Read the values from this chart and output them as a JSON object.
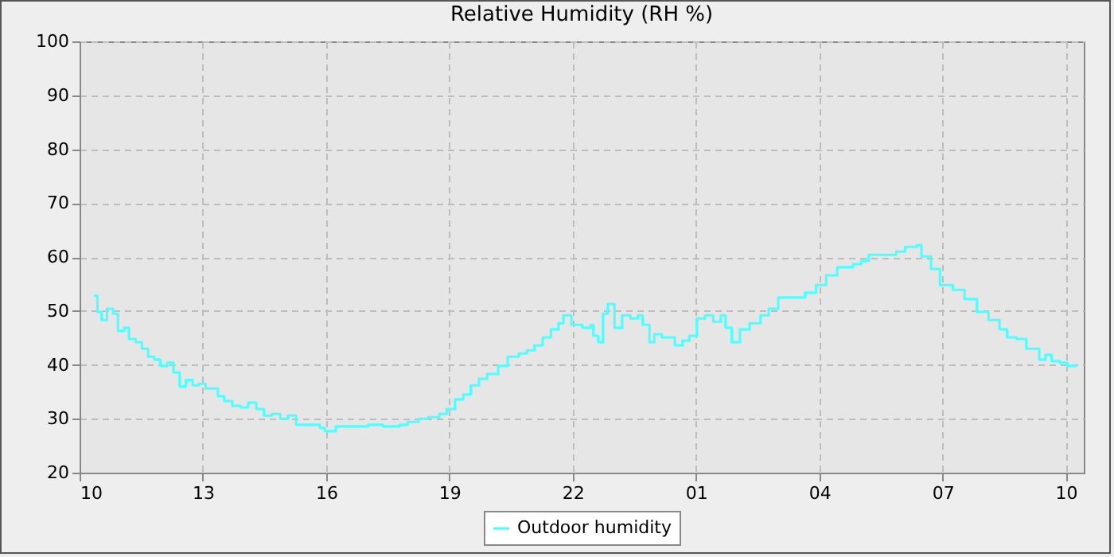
{
  "chart_data": {
    "type": "step",
    "title": "Relative Humidity (RH %)",
    "x": [
      "--01-01T10:21",
      "--01-01T10:26",
      "--01-01T10:32",
      "--01-01T10:40",
      "--01-01T10:49",
      "--01-01T10:56",
      "--01-01T11:05",
      "--01-01T11:12",
      "--01-01T11:22",
      "--01-01T11:31",
      "--01-01T11:40",
      "--01-01T11:49",
      "--01-01T11:58",
      "--01-01T12:08",
      "--01-01T12:17",
      "--01-01T12:26",
      "--01-01T12:35",
      "--01-01T12:45",
      "--01-01T12:54",
      "--01-01T13:04",
      "--01-01T13:13",
      "--01-01T13:22",
      "--01-01T13:31",
      "--01-01T13:43",
      "--01-01T13:55",
      "--01-01T14:06",
      "--01-01T14:18",
      "--01-01T14:29",
      "--01-01T14:41",
      "--01-01T14:53",
      "--01-01T15:04",
      "--01-01T15:16",
      "--01-01T15:28",
      "--01-01T15:39",
      "--01-01T15:51",
      "--01-01T15:58",
      "--01-01T16:14",
      "--01-01T16:37",
      "--01-01T17:01",
      "--01-01T17:23",
      "--01-01T17:47",
      "--01-01T17:59",
      "--01-01T18:15",
      "--01-01T18:29",
      "--01-01T18:45",
      "--01-01T18:56",
      "--01-01T19:08",
      "--01-01T19:20",
      "--01-01T19:31",
      "--01-01T19:43",
      "--01-01T19:55",
      "--01-01T20:11",
      "--01-01T20:25",
      "--01-01T20:41",
      "--01-01T20:53",
      "--01-01T21:04",
      "--01-01T21:16",
      "--01-01T21:28",
      "--01-01T21:39",
      "--01-01T21:46",
      "--01-01T21:58",
      "--01-01T22:14",
      "--01-01T22:26",
      "--01-01T22:30",
      "--01-01T22:37",
      "--01-01T22:44",
      "--01-01T22:51",
      "--01-01T23:01",
      "--01-01T23:12",
      "--01-01T23:24",
      "--01-01T23:35",
      "--01-01T23:42",
      "--01-01T23:52",
      "--01-01T23:59",
      "--01-02T00:10",
      "--01-02T00:22",
      "--01-02T00:29",
      "--01-02T00:40",
      "--01-02T00:50",
      "--01-02T01:01",
      "--01-02T01:13",
      "--01-02T01:25",
      "--01-02T01:36",
      "--01-02T01:43",
      "--01-02T01:52",
      "--01-02T02:04",
      "--01-02T02:18",
      "--01-02T02:34",
      "--01-02T02:46",
      "--01-02T03:00",
      "--01-02T03:28",
      "--01-02T03:39",
      "--01-02T03:55",
      "--01-02T04:10",
      "--01-02T04:26",
      "--01-02T04:49",
      "--01-02T05:01",
      "--01-02T05:12",
      "--01-02T05:38",
      "--01-02T05:52",
      "--01-02T06:05",
      "--01-02T06:22",
      "--01-02T06:29",
      "--01-02T06:43",
      "--01-02T06:56",
      "--01-02T07:15",
      "--01-02T07:32",
      "--01-02T07:50",
      "--01-02T08:07",
      "--01-02T08:23",
      "--01-02T08:34",
      "--01-02T08:48",
      "--01-02T09:02",
      "--01-02T09:21",
      "--01-02T09:30",
      "--01-02T09:39",
      "--01-02T09:51",
      "--01-02T10:02",
      "--01-02T10:14"
    ],
    "series": [
      {
        "name": "Outdoor humidity",
        "color": "#4dffff",
        "values": [
          52.8,
          49.8,
          48.3,
          50.4,
          49.5,
          46.3,
          46.9,
          44.8,
          44.2,
          43.0,
          41.5,
          41.0,
          39.8,
          40.4,
          38.6,
          36.0,
          37.2,
          36.2,
          36.5,
          35.6,
          35.6,
          34.2,
          33.3,
          32.4,
          32.1,
          33.0,
          31.8,
          30.6,
          30.9,
          30.0,
          30.6,
          28.9,
          28.9,
          28.9,
          28.3,
          27.7,
          28.6,
          28.6,
          28.9,
          28.6,
          28.9,
          29.4,
          30.0,
          30.3,
          30.9,
          31.8,
          33.6,
          34.5,
          36.2,
          37.4,
          38.3,
          39.8,
          41.5,
          42.1,
          42.7,
          43.6,
          45.1,
          46.6,
          47.7,
          49.2,
          47.4,
          46.9,
          47.4,
          45.4,
          44.2,
          49.5,
          51.3,
          46.9,
          49.2,
          48.6,
          49.2,
          47.4,
          44.2,
          45.7,
          45.1,
          45.1,
          43.6,
          44.5,
          45.4,
          48.6,
          49.2,
          48.0,
          49.2,
          46.9,
          44.2,
          46.6,
          47.7,
          49.2,
          50.4,
          52.5,
          52.5,
          53.4,
          54.8,
          56.6,
          58.1,
          58.7,
          59.3,
          60.4,
          60.4,
          61.0,
          61.9,
          62.2,
          60.1,
          57.8,
          54.8,
          53.9,
          52.2,
          49.8,
          48.3,
          46.6,
          45.1,
          44.8,
          43.0,
          41.0,
          41.9,
          40.7,
          40.4,
          39.8,
          40.1
        ]
      }
    ],
    "xlim": [
      "--01-01T10:00",
      "--01-02T10:26"
    ],
    "xticks": [
      {
        "value": "--01-01T10:00",
        "label": "10"
      },
      {
        "value": "--01-01T13:00",
        "label": "13"
      },
      {
        "value": "--01-01T16:00",
        "label": "16"
      },
      {
        "value": "--01-01T19:00",
        "label": "19"
      },
      {
        "value": "--01-01T22:00",
        "label": "22"
      },
      {
        "value": "--01-02T01:00",
        "label": "01"
      },
      {
        "value": "--01-02T04:00",
        "label": "04"
      },
      {
        "value": "--01-02T07:00",
        "label": "07"
      },
      {
        "value": "--01-02T10:00",
        "label": "10"
      }
    ],
    "ylim": [
      20,
      100
    ],
    "yticks": [
      20,
      30,
      40,
      50,
      60,
      70,
      80,
      90,
      100
    ],
    "grid": true,
    "legend": "bottom"
  }
}
